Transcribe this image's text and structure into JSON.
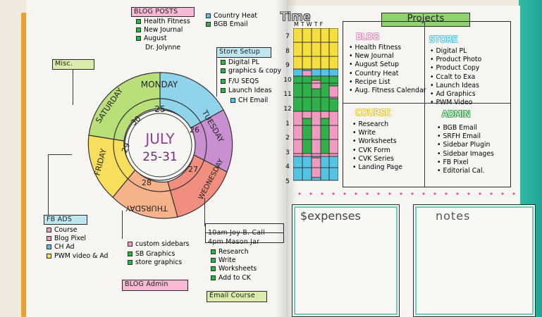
{
  "colors": {
    "background": "#efe9df",
    "page": "#f6f5f1",
    "green": "#2fb24a",
    "pink": "#f09ac0",
    "blue": "#54c4e5",
    "yellow": "#f5df3f",
    "orange": "#f2a35a",
    "purple": "#b66bc1",
    "turquoise_cover": "#2fb8a6"
  },
  "left_page": {
    "blog_posts": {
      "title": "BLOG POSTS",
      "items": [
        "Health Fitness",
        "New Journal",
        "August",
        "Dr. Jolynne"
      ]
    },
    "country_heat": [
      "Country Heat",
      "BGB Email"
    ],
    "misc": "Misc.",
    "store_setup": {
      "title": "Store Setup",
      "items": [
        "Digital PL",
        "graphics & copy",
        "F/U SEQS",
        "Launch Ideas",
        "CH Email"
      ]
    },
    "week_wheel": {
      "month": "JULY",
      "range": "25-31",
      "days": [
        "MONDAY",
        "TUESDAY",
        "WEDNESDAY",
        "THURSDAY",
        "FRIDAY",
        "SATURDAY"
      ],
      "dates": [
        "25",
        "26",
        "27",
        "28",
        "29",
        "30"
      ]
    },
    "fb_ads": {
      "title": "FB ADS",
      "items": [
        "Course",
        "Blog Pixel",
        "CH Ad",
        "PWM video & Ad"
      ]
    },
    "blog_admin": {
      "title": "BLOG Admin",
      "items": [
        "custom sidebars",
        "SB Graphics",
        "store graphics"
      ]
    },
    "calls": [
      "10am Joy B. Call",
      "4pm Mason Jar"
    ],
    "email_course": {
      "title": "Email Course",
      "items": [
        "Research",
        "Write",
        "Worksheets",
        "Add to CK"
      ]
    }
  },
  "right_page": {
    "time": {
      "title": "Time",
      "day_letters": [
        "M",
        "T",
        "W",
        "T",
        "F"
      ],
      "hours": [
        "7",
        "8",
        "9",
        "10",
        "11",
        "12",
        "1",
        "2",
        "3",
        "4",
        "5"
      ]
    },
    "projects": {
      "title": "Projects",
      "blog": {
        "title": "BLOG",
        "items": [
          "Health Fitness",
          "New Journal",
          "August Setup",
          "Country Heat",
          "Recipe List",
          "Aug. Fitness Calendar"
        ]
      },
      "store": {
        "title": "STORE",
        "items": [
          "Digital PL",
          "Product Photo",
          "Product Copy",
          "Ccalt to Exa",
          "Launch Ideas",
          "Ad Graphics",
          "PWM Video"
        ]
      },
      "course": {
        "title": "COURSE",
        "items": [
          "Research",
          "Write",
          "Worksheets",
          "CVK Form",
          "CVK Series",
          "Landing Page"
        ]
      },
      "admin": {
        "title": "ADMIN",
        "items": [
          "BGB Email",
          "SRFH Email",
          "Sidebar Plugin",
          "Sidebar Images",
          "FB Pixel",
          "Editorial Cal."
        ]
      }
    },
    "expenses": "$expenses",
    "notes": "notes"
  }
}
